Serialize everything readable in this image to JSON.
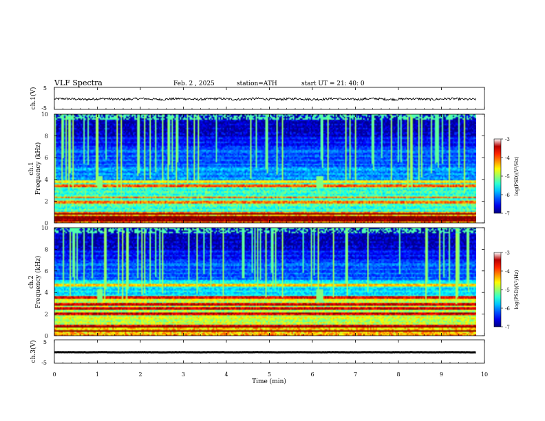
{
  "header": {
    "title": "VLF  Spectra",
    "date": "Feb. 2  , 2025",
    "station": "station=ATH",
    "start": "start  UT  =    21: 40: 0"
  },
  "chart_data": [
    {
      "type": "line",
      "ylabel": "ch.1(V)",
      "ylim": [
        -5,
        5
      ],
      "yticks": [
        "5",
        "-5"
      ],
      "baseline": -0.3,
      "noise": 0.5
    },
    {
      "type": "heatmap",
      "ylabel_top": "ch.1",
      "ylabel": "Frequency  (kHz)",
      "ylim": [
        0,
        10
      ],
      "yticks": [
        "0",
        "2",
        "4",
        "6",
        "8",
        "10"
      ],
      "xlim": [
        0,
        9.8
      ],
      "colorbar": {
        "label": "log(PSD)(V²/Hz)",
        "range": [
          -7,
          -3
        ],
        "ticks": [
          "-3",
          "-4",
          "-5",
          "-6",
          "-7"
        ]
      },
      "strong_bands_khz": [
        0.3,
        0.6,
        0.9,
        2.0,
        2.4,
        3.5,
        3.9
      ],
      "bursts_min": [
        1.05,
        6.15
      ]
    },
    {
      "type": "heatmap",
      "ylabel_top": "ch.2",
      "ylabel": "Frequency  (kHz)",
      "ylim": [
        0,
        10
      ],
      "yticks": [
        "0",
        "2",
        "4",
        "6",
        "8",
        "10"
      ],
      "xlim": [
        0,
        9.8
      ],
      "colorbar": {
        "label": "log(PSD)(V²/Hz)",
        "range": [
          -7,
          -3
        ],
        "ticks": [
          "-3",
          "-4",
          "-5",
          "-6",
          "-7"
        ]
      },
      "strong_bands_khz": [
        0.5,
        1.0,
        2.1,
        2.6,
        3.0,
        3.6,
        4.7
      ],
      "bursts_min": [
        1.05,
        6.15
      ]
    },
    {
      "type": "line",
      "ylabel": "ch.3(V)",
      "ylim": [
        -5,
        5
      ],
      "yticks": [
        "5",
        "-5"
      ],
      "baseline": -0.3,
      "noise": 0.05
    }
  ],
  "xaxis": {
    "label": "Time  (min)",
    "ticks": [
      "0",
      "1",
      "2",
      "3",
      "4",
      "5",
      "6",
      "7",
      "8",
      "9",
      "10"
    ],
    "xlim": [
      0,
      10
    ]
  }
}
